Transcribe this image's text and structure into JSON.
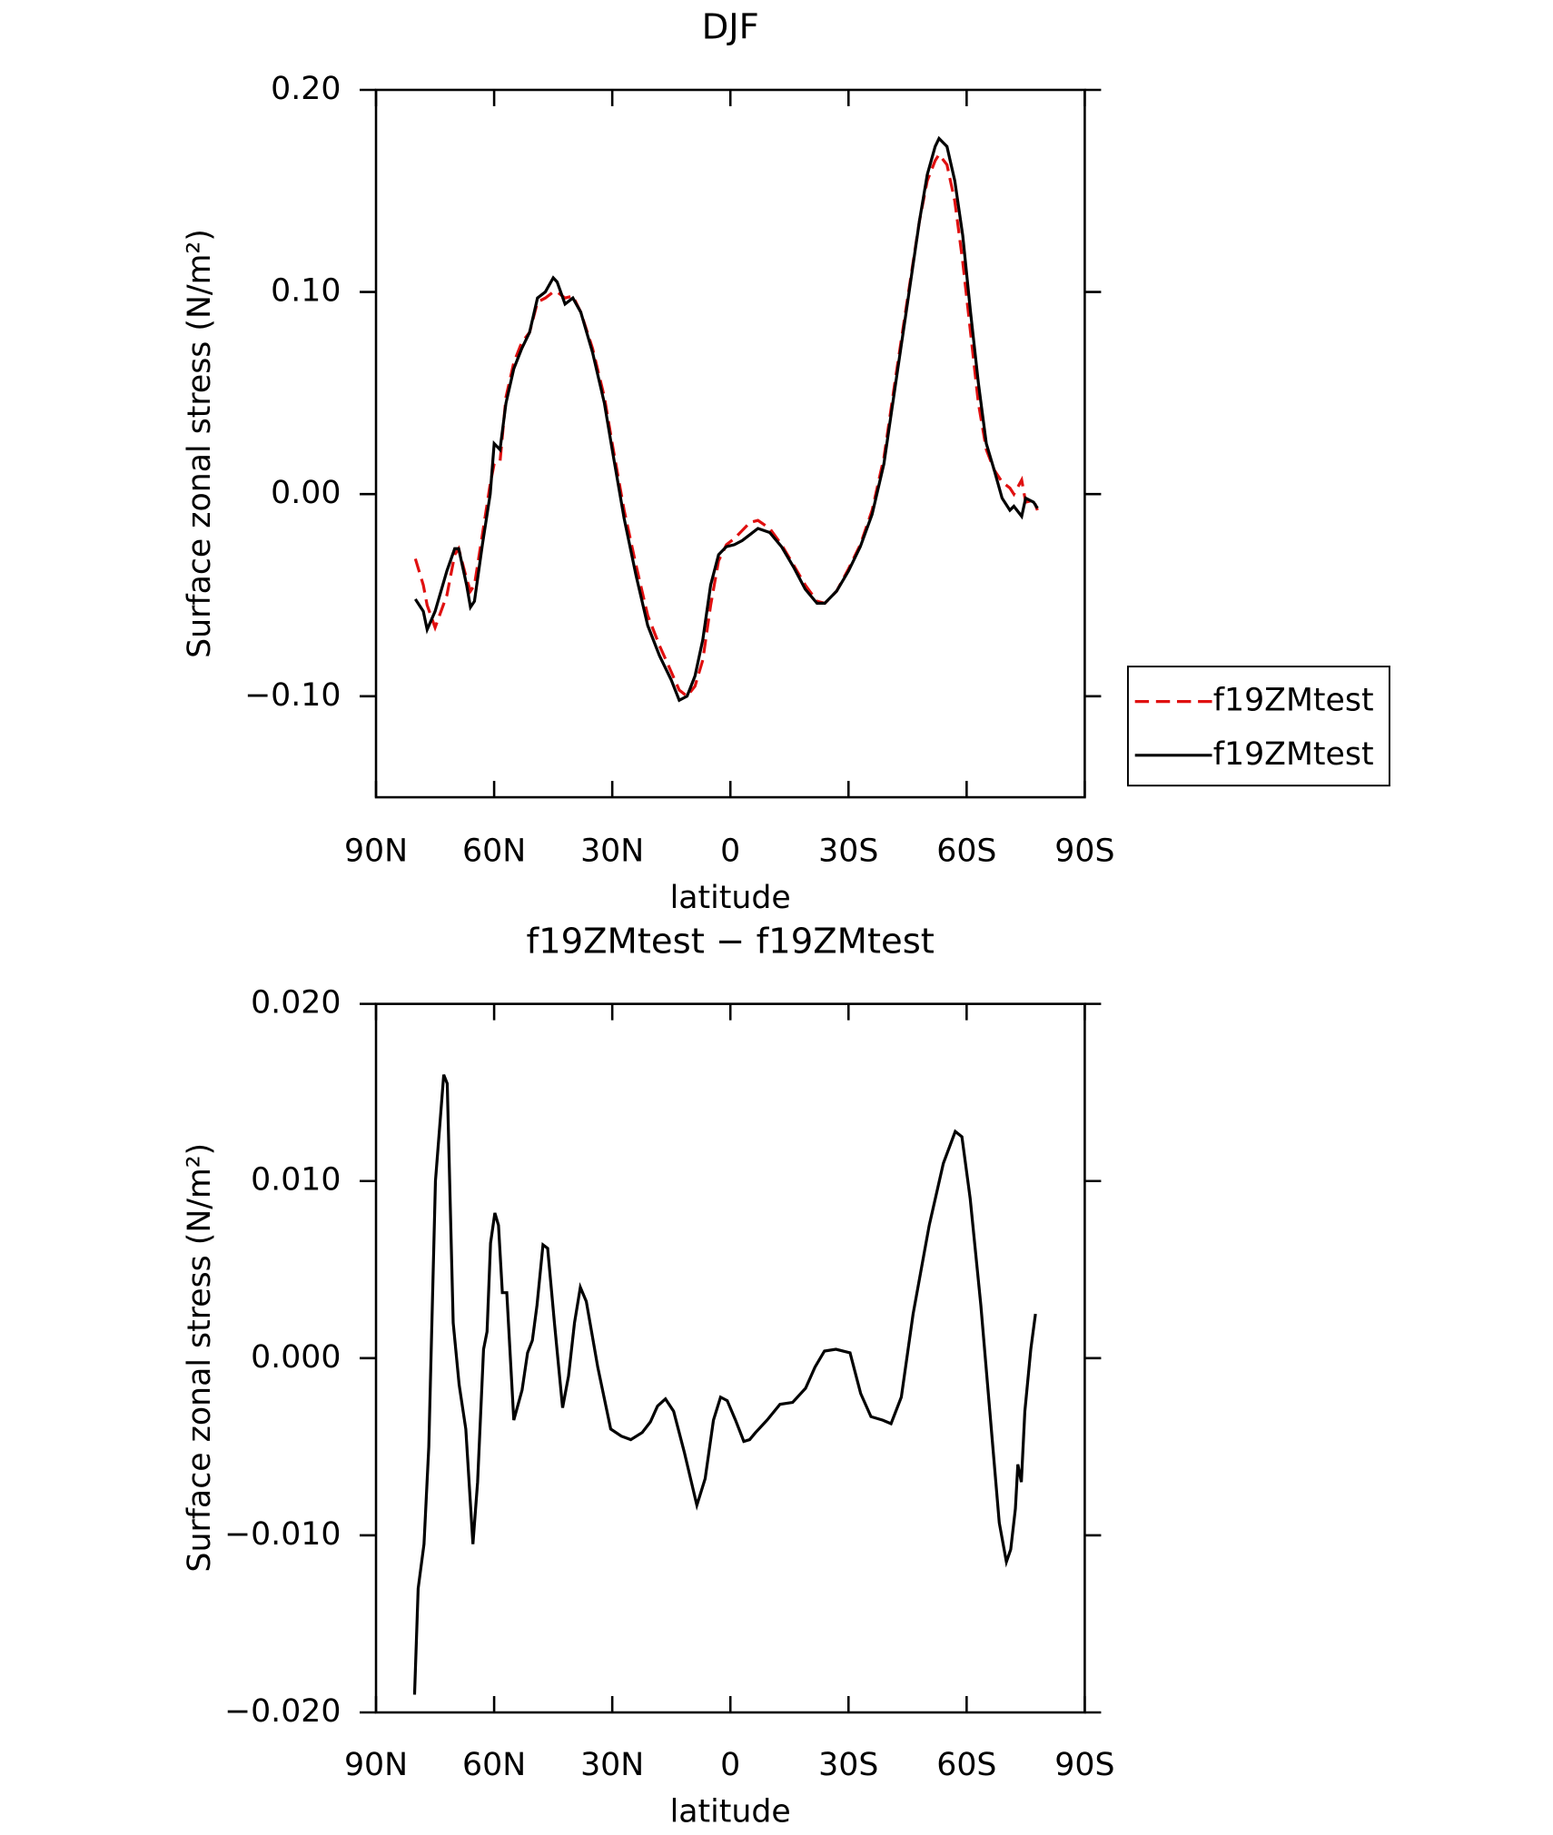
{
  "chart_data": [
    {
      "type": "line",
      "title": "DJF",
      "x_label": "latitude",
      "y_label": "Surface zonal stress (N/m²)",
      "xlim": [
        90,
        -90
      ],
      "xticks": [
        {
          "value": 90,
          "label": "90N"
        },
        {
          "value": 60,
          "label": "60N"
        },
        {
          "value": 30,
          "label": "30N"
        },
        0,
        {
          "value": -30,
          "label": "30S"
        },
        {
          "value": -60,
          "label": "60S"
        },
        {
          "value": -90,
          "label": "90S"
        }
      ],
      "ylim": [
        -0.15,
        0.2
      ],
      "yticks": [
        {
          "value": -0.1,
          "label": "−0.10"
        },
        {
          "value": 0,
          "label": "0.00"
        },
        {
          "value": 0.1,
          "label": "0.10"
        },
        {
          "value": 0.2,
          "label": "0.20"
        }
      ],
      "legend": "outside-right",
      "x": [
        80,
        78,
        77,
        75,
        72,
        70,
        69,
        67,
        66,
        65,
        63,
        61,
        60,
        58.5,
        57,
        55,
        53,
        51,
        49,
        47,
        45,
        44,
        42,
        40,
        38,
        35,
        32,
        30,
        27,
        24,
        21,
        18,
        15,
        13,
        11,
        9,
        7,
        5,
        3,
        1,
        -1,
        -3,
        -5,
        -7,
        -10,
        -13,
        -16,
        -19,
        -22,
        -24,
        -27,
        -30,
        -33,
        -36,
        -39,
        -42,
        -45,
        -48,
        -50,
        -52,
        -53,
        -55,
        -57,
        -59,
        -61,
        -63,
        -65,
        -67,
        -69,
        -71,
        -72,
        -74,
        -75,
        -77,
        -78
      ],
      "series": [
        {
          "name": "f19ZMtest",
          "color": "#e01010",
          "dash": true,
          "values": [
            -0.032,
            -0.045,
            -0.055,
            -0.066,
            -0.05,
            -0.03,
            -0.027,
            -0.042,
            -0.048,
            -0.045,
            -0.02,
            0.005,
            0.015,
            0.016,
            0.048,
            0.065,
            0.075,
            0.08,
            0.095,
            0.097,
            0.1,
            0.1,
            0.097,
            0.098,
            0.09,
            0.072,
            0.048,
            0.025,
            -0.008,
            -0.035,
            -0.06,
            -0.075,
            -0.088,
            -0.097,
            -0.1,
            -0.095,
            -0.082,
            -0.055,
            -0.033,
            -0.025,
            -0.022,
            -0.018,
            -0.014,
            -0.013,
            -0.017,
            -0.025,
            -0.035,
            -0.045,
            -0.053,
            -0.054,
            -0.048,
            -0.037,
            -0.025,
            -0.008,
            0.018,
            0.058,
            0.097,
            0.135,
            0.155,
            0.165,
            0.168,
            0.163,
            0.145,
            0.115,
            0.08,
            0.045,
            0.022,
            0.012,
            0.006,
            0.003,
            0,
            0.007,
            -0.004,
            -0.003,
            -0.008
          ]
        },
        {
          "name": "f19ZMtest",
          "color": "#000000",
          "dash": false,
          "values": [
            -0.052,
            -0.058,
            -0.067,
            -0.058,
            -0.038,
            -0.027,
            -0.027,
            -0.045,
            -0.056,
            -0.053,
            -0.025,
            0,
            0.025,
            0.022,
            0.045,
            0.062,
            0.072,
            0.08,
            0.097,
            0.1,
            0.107,
            0.105,
            0.094,
            0.097,
            0.09,
            0.07,
            0.045,
            0.022,
            -0.012,
            -0.04,
            -0.065,
            -0.08,
            -0.092,
            -0.102,
            -0.1,
            -0.09,
            -0.072,
            -0.045,
            -0.03,
            -0.026,
            -0.025,
            -0.023,
            -0.02,
            -0.017,
            -0.019,
            -0.026,
            -0.036,
            -0.047,
            -0.054,
            -0.054,
            -0.048,
            -0.038,
            -0.026,
            -0.01,
            0.015,
            0.055,
            0.095,
            0.135,
            0.158,
            0.172,
            0.176,
            0.172,
            0.155,
            0.128,
            0.09,
            0.055,
            0.025,
            0.012,
            -0.002,
            -0.008,
            -0.006,
            -0.011,
            -0.002,
            -0.004,
            -0.007
          ]
        }
      ]
    },
    {
      "type": "line",
      "title": "f19ZMtest − f19ZMtest",
      "x_label": "latitude",
      "y_label": "Surface zonal stress (N/m²)",
      "xlim": [
        90,
        -90
      ],
      "xticks": [
        {
          "value": 90,
          "label": "90N"
        },
        {
          "value": 60,
          "label": "60N"
        },
        {
          "value": 30,
          "label": "30N"
        },
        0,
        {
          "value": -30,
          "label": "30S"
        },
        {
          "value": -60,
          "label": "60S"
        },
        {
          "value": -90,
          "label": "90S"
        }
      ],
      "ylim": [
        -0.02,
        0.02
      ],
      "yticks": [
        {
          "value": -0.02,
          "label": "−0.020"
        },
        {
          "value": -0.01,
          "label": "−0.010"
        },
        {
          "value": 0,
          "label": "0.000"
        },
        {
          "value": 0.01,
          "label": "0.010"
        },
        {
          "value": 0.02,
          "label": "0.020"
        }
      ],
      "color": "#000000",
      "x": [
        80.2,
        79.3,
        77.8,
        76.6,
        74.9,
        72.8,
        71.9,
        70.4,
        68.9,
        67.2,
        65.4,
        64.2,
        62.7,
        61.8,
        60.9,
        59.8,
        58.9,
        57.9,
        56.8,
        55,
        52.9,
        51.5,
        50.3,
        49.1,
        47.6,
        46.4,
        44.7,
        42.6,
        41.1,
        39.6,
        38.1,
        36.6,
        33.7,
        30.4,
        27.7,
        25.3,
        22.4,
        20.3,
        18.5,
        16.5,
        14.4,
        11.7,
        8.5,
        6.4,
        4.3,
        2.5,
        0.8,
        -1.3,
        -3.4,
        -4.9,
        -6.4,
        -9.3,
        -12.6,
        -15.8,
        -19.1,
        -21.5,
        -23.9,
        -26.8,
        -30.4,
        -33.1,
        -35.7,
        -38.7,
        -40.8,
        -43.4,
        -46.4,
        -50.5,
        -54.1,
        -57.1,
        -58.8,
        -60.9,
        -63.6,
        -65.9,
        -68.3,
        -70.1,
        -71.2,
        -72.4,
        -73,
        -73.9,
        -74.8,
        -76.3,
        -77.5
      ],
      "values": [
        -0.019,
        -0.013,
        -0.0105,
        -0.005,
        0.01,
        0.016,
        0.0155,
        0.002,
        -0.0015,
        -0.004,
        -0.0105,
        -0.007,
        0.0005,
        0.0015,
        0.0065,
        0.0082,
        0.0075,
        0.0037,
        0.0037,
        -0.0035,
        -0.0018,
        0.0003,
        0.001,
        0.003,
        0.0064,
        0.0062,
        0.002,
        -0.0028,
        -0.001,
        0.002,
        0.004,
        0.0032,
        -0.0005,
        -0.004,
        -0.0044,
        -0.0046,
        -0.0042,
        -0.0036,
        -0.0027,
        -0.0023,
        -0.003,
        -0.0053,
        -0.0083,
        -0.0068,
        -0.0035,
        -0.0022,
        -0.0024,
        -0.0035,
        -0.0047,
        -0.0046,
        -0.0042,
        -0.0035,
        -0.0026,
        -0.0025,
        -0.0017,
        -0.0005,
        0.0004,
        0.0005,
        0.0003,
        -0.002,
        -0.0033,
        -0.0035,
        -0.0037,
        -0.0022,
        0.0025,
        0.0075,
        0.011,
        0.0128,
        0.0125,
        0.009,
        0.003,
        -0.003,
        -0.0093,
        -0.0115,
        -0.0108,
        -0.0085,
        -0.006,
        -0.007,
        -0.003,
        0.0005,
        0.0025
      ]
    }
  ]
}
